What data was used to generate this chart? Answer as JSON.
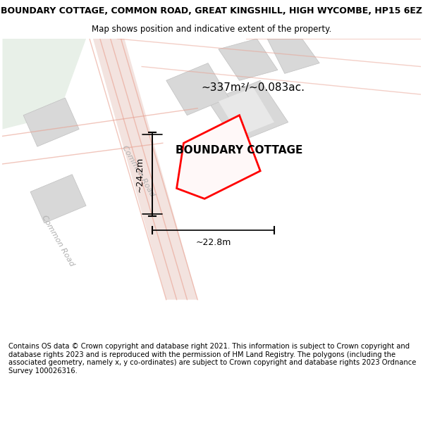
{
  "title": "BOUNDARY COTTAGE, COMMON ROAD, GREAT KINGSHILL, HIGH WYCOMBE, HP15 6EZ",
  "subtitle": "Map shows position and indicative extent of the property.",
  "footer": "Contains OS data © Crown copyright and database right 2021. This information is subject to Crown copyright and database rights 2023 and is reproduced with the permission of HM Land Registry. The polygons (including the associated geometry, namely x, y co-ordinates) are subject to Crown copyright and database rights 2023 Ordnance Survey 100026316.",
  "area_label": "~337m²/~0.083ac.",
  "property_label": "BOUNDARY COTTAGE",
  "dim_height": "~24.2m",
  "dim_width": "~22.8m",
  "bg_color": "#f5f5f0",
  "road_label1": "Common Road",
  "road_label2": "Common Road",
  "map_bg": "#f0f0eb",
  "plot_bg": "#ffffff"
}
